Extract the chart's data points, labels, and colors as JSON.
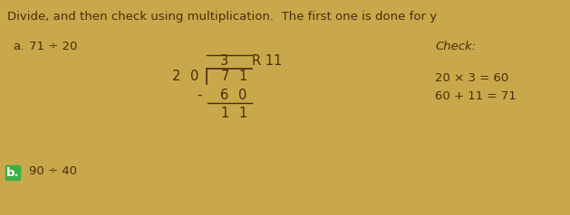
{
  "background_color": "#c8a84b",
  "text_color": "#4a2e0a",
  "title": "Divide, and then check using multiplication.  The first one is done for y",
  "label_a": "a.",
  "problem_a": "71 ÷ 20",
  "label_b": "b.",
  "problem_b": "90 ÷ 40",
  "check_label": "Check:",
  "check_line1": "20 × 3 = 60",
  "check_line2": "60 + 11 = 71",
  "division_quotient": "3",
  "division_remainder": "R 11",
  "division_divisor_tens": "2",
  "division_divisor_ones": "0",
  "division_dividend_tens": "7",
  "division_dividend_ones": "1",
  "division_subtract_tens": "6",
  "division_subtract_ones": "0",
  "division_result_tens": "1",
  "division_result_ones": "1",
  "b_bullet_color": "#3cb043",
  "font_size_main": 9.5,
  "font_size_division": 10.5
}
